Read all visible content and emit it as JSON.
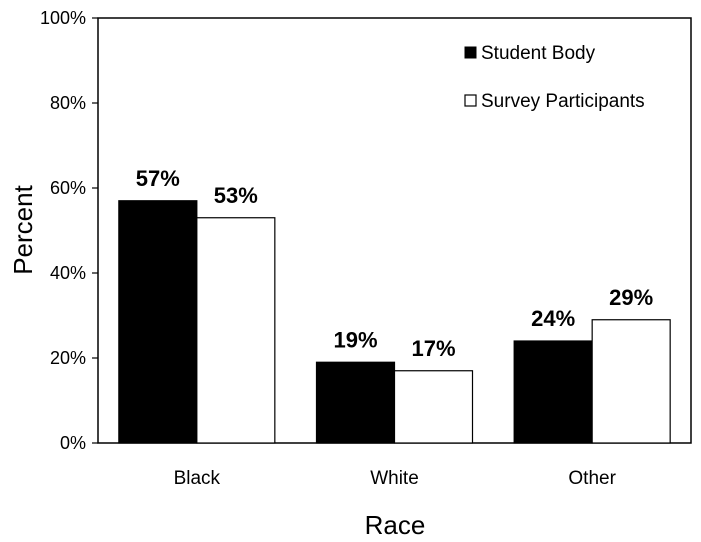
{
  "chart_data": {
    "type": "bar",
    "categories": [
      "Black",
      "White",
      "Other"
    ],
    "series": [
      {
        "name": "Student Body",
        "values": [
          57,
          19,
          24
        ],
        "labels": [
          "57%",
          "19%",
          "24%"
        ],
        "color": "#000000"
      },
      {
        "name": "Survey Participants",
        "values": [
          53,
          17,
          29
        ],
        "labels": [
          "53%",
          "17%",
          "29%"
        ],
        "color": "#ffffff"
      }
    ],
    "title": "",
    "xlabel": "Race",
    "ylabel": "Percent",
    "ylim": [
      0,
      100
    ],
    "yticks": [
      0,
      20,
      40,
      60,
      80,
      100
    ],
    "ytick_labels": [
      "0%",
      "20%",
      "40%",
      "60%",
      "80%",
      "100%"
    ],
    "legend_position": "top-right",
    "grid": false
  }
}
